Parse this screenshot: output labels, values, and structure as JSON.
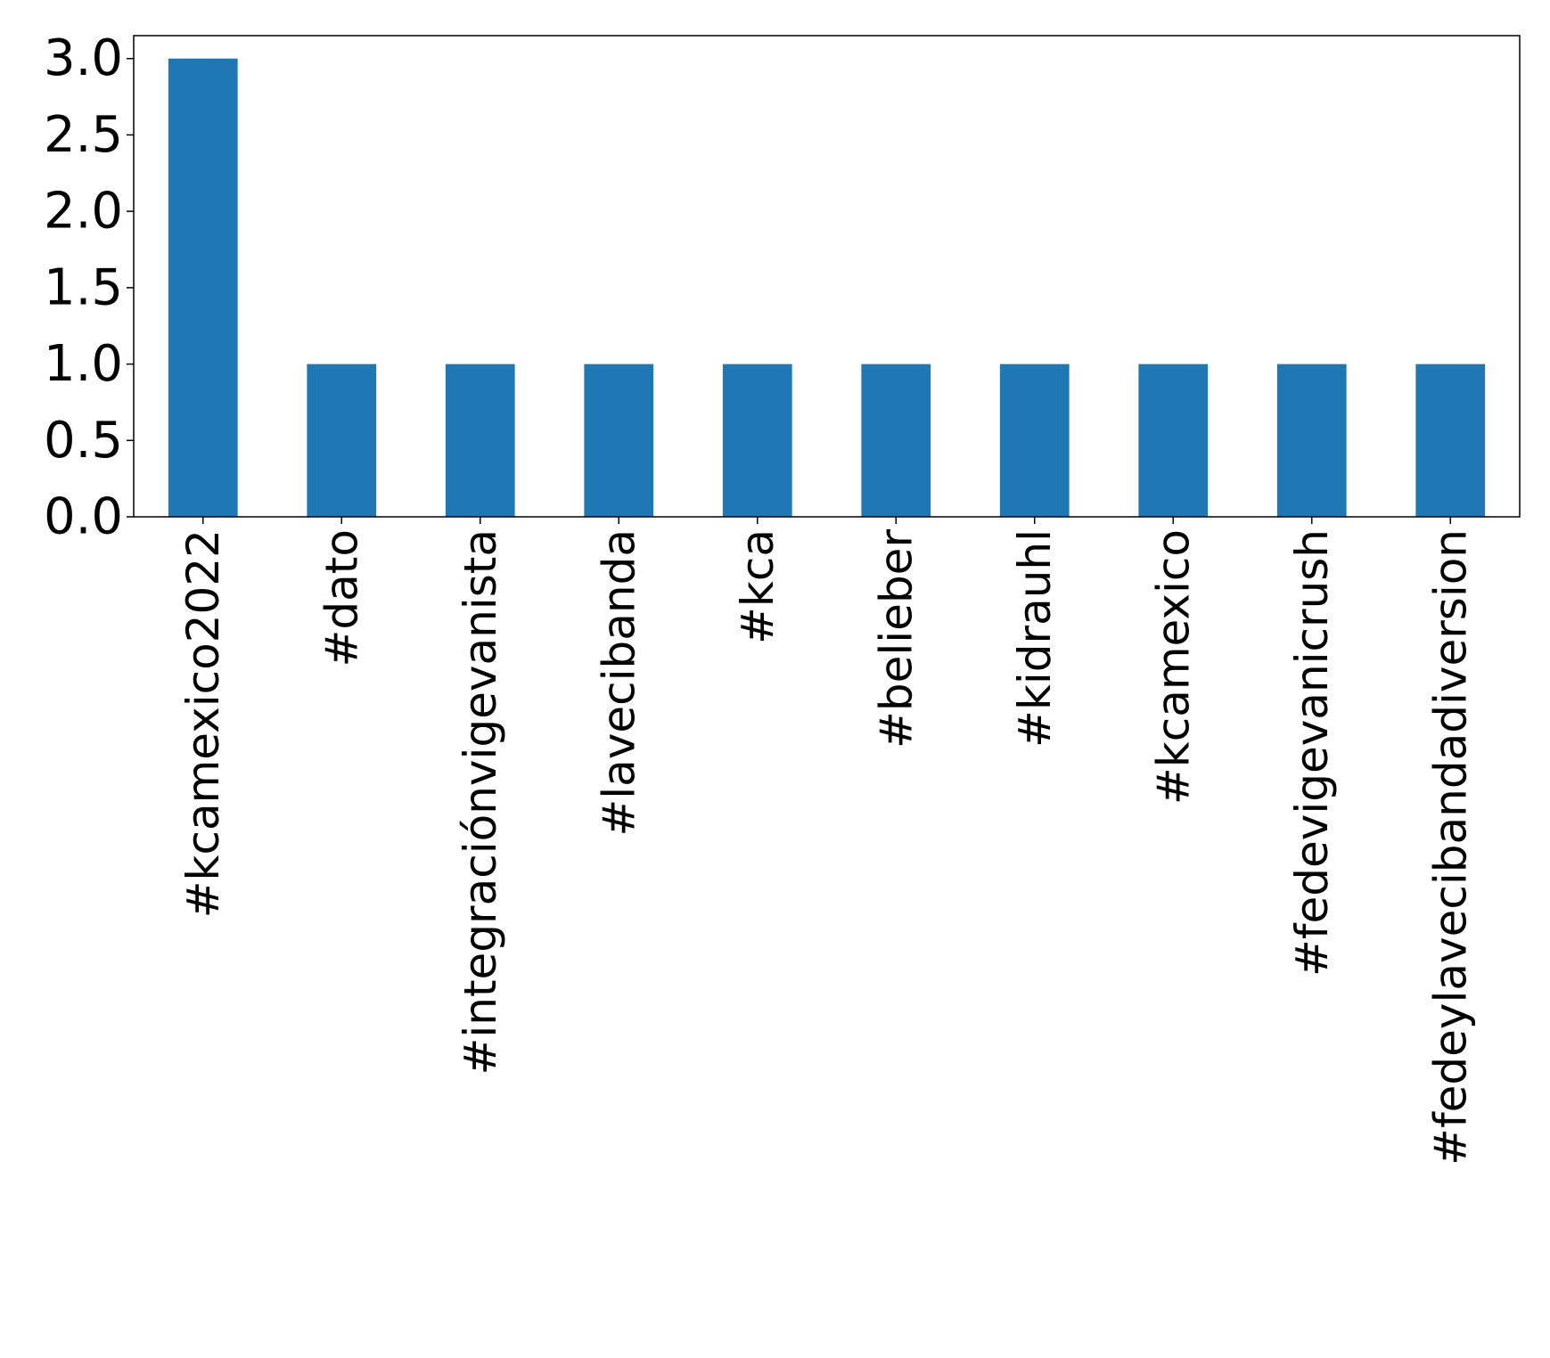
{
  "chart_data": {
    "type": "bar",
    "title": "",
    "xlabel": "",
    "ylabel": "",
    "categories": [
      "#kcamexico2022",
      "#dato",
      "#integraciónvigevanista",
      "#lavecibanda",
      "#kca",
      "#belieber",
      "#kidrauhl",
      "#kcamexico",
      "#fedevigevanicrush",
      "#fedeylavecibandadiversion"
    ],
    "values": [
      3,
      1,
      1,
      1,
      1,
      1,
      1,
      1,
      1,
      1
    ],
    "ylim": [
      0,
      3.15
    ],
    "yticks": [
      0.0,
      0.5,
      1.0,
      1.5,
      2.0,
      2.5,
      3.0
    ],
    "ytick_labels": [
      "0.0",
      "0.5",
      "1.0",
      "1.5",
      "2.0",
      "2.5",
      "3.0"
    ],
    "bar_color": "#1f77b4",
    "grid": false,
    "legend": "none"
  }
}
